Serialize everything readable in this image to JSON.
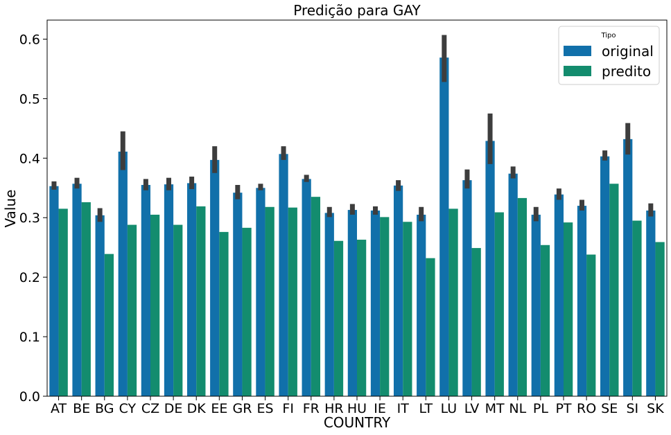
{
  "chart_data": {
    "type": "bar",
    "title": "Predição para GAY",
    "xlabel": "COUNTRY",
    "ylabel": "Value",
    "ylim": [
      0,
      0.632
    ],
    "yticks": [
      0.0,
      0.1,
      0.2,
      0.3,
      0.4,
      0.5,
      0.6
    ],
    "ytick_labels": [
      "0.0",
      "0.1",
      "0.2",
      "0.3",
      "0.4",
      "0.5",
      "0.6"
    ],
    "grid": false,
    "legend": {
      "title": "Tipo",
      "placement": "top-right"
    },
    "categories": [
      "AT",
      "BE",
      "BG",
      "CY",
      "CZ",
      "DE",
      "DK",
      "EE",
      "GR",
      "ES",
      "FI",
      "FR",
      "HR",
      "HU",
      "IE",
      "IT",
      "LT",
      "LU",
      "LV",
      "MT",
      "NL",
      "PL",
      "PT",
      "RO",
      "SE",
      "SI",
      "SK"
    ],
    "series": [
      {
        "name": "original",
        "color": "#1170aa",
        "values": [
          0.353,
          0.357,
          0.304,
          0.411,
          0.355,
          0.356,
          0.358,
          0.397,
          0.342,
          0.35,
          0.407,
          0.365,
          0.308,
          0.313,
          0.312,
          0.354,
          0.305,
          0.569,
          0.363,
          0.429,
          0.374,
          0.305,
          0.339,
          0.32,
          0.403,
          0.432,
          0.312
        ],
        "error_low": [
          0.347,
          0.349,
          0.293,
          0.38,
          0.346,
          0.346,
          0.348,
          0.375,
          0.331,
          0.346,
          0.397,
          0.36,
          0.301,
          0.305,
          0.305,
          0.345,
          0.294,
          0.528,
          0.349,
          0.39,
          0.366,
          0.294,
          0.33,
          0.312,
          0.396,
          0.406,
          0.302
        ],
        "error_high": [
          0.361,
          0.367,
          0.316,
          0.445,
          0.365,
          0.367,
          0.369,
          0.42,
          0.355,
          0.357,
          0.42,
          0.372,
          0.318,
          0.323,
          0.319,
          0.363,
          0.318,
          0.607,
          0.381,
          0.475,
          0.386,
          0.318,
          0.349,
          0.33,
          0.413,
          0.459,
          0.324
        ]
      },
      {
        "name": "predito",
        "color": "#138c6e",
        "values": [
          0.315,
          0.326,
          0.239,
          0.288,
          0.305,
          0.288,
          0.319,
          0.276,
          0.283,
          0.318,
          0.317,
          0.335,
          0.261,
          0.263,
          0.301,
          0.293,
          0.232,
          0.315,
          0.249,
          0.309,
          0.333,
          0.254,
          0.292,
          0.238,
          0.357,
          0.295,
          0.259
        ]
      }
    ]
  }
}
